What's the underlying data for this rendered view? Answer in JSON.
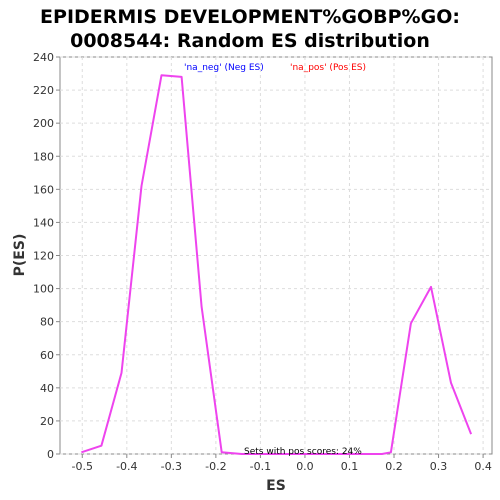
{
  "chart_data": {
    "type": "line",
    "title_line1": "EPIDERMIS DEVELOPMENT%GOBP%GO:",
    "title_line2": "0008544: Random ES distribution",
    "xlabel": "ES",
    "ylabel": "P(ES)",
    "xlim": [
      -0.55,
      0.42
    ],
    "ylim": [
      0,
      240
    ],
    "xticks": [
      -0.5,
      -0.4,
      -0.3,
      -0.2,
      -0.1,
      0.0,
      0.1,
      0.2,
      0.3,
      0.4
    ],
    "xtick_labels": [
      "-0.5",
      "-0.4",
      "-0.3",
      "-0.2",
      "-0.1",
      "0.0",
      "0.1",
      "0.2",
      "0.3",
      "0.4"
    ],
    "yticks": [
      0,
      20,
      40,
      60,
      80,
      100,
      120,
      140,
      160,
      180,
      200,
      220,
      240
    ],
    "ytick_labels": [
      "0",
      "20",
      "40",
      "60",
      "80",
      "100",
      "120",
      "140",
      "160",
      "180",
      "200",
      "220",
      "240"
    ],
    "grid": true,
    "legend": [
      {
        "label": "'na_neg' (Neg ES)",
        "color": "#0000ff"
      },
      {
        "label": "'na_pos' (Pos ES)",
        "color": "#ff0000"
      }
    ],
    "legend_position": "top",
    "annotation": "Sets with pos scores: 24%",
    "series": [
      {
        "color": "#ee44ee",
        "x": [
          -0.502,
          -0.457,
          -0.412,
          -0.367,
          -0.322,
          -0.277,
          -0.232,
          -0.187,
          -0.142,
          -0.097,
          -0.052,
          -0.007,
          0.038,
          0.083,
          0.128,
          0.173,
          0.193,
          0.238,
          0.283,
          0.328,
          0.373
        ],
        "y": [
          1,
          5,
          49,
          162,
          229,
          228,
          89,
          1,
          0,
          0,
          0,
          0,
          0,
          0,
          0,
          0,
          1,
          79,
          101,
          43,
          12
        ]
      }
    ]
  }
}
